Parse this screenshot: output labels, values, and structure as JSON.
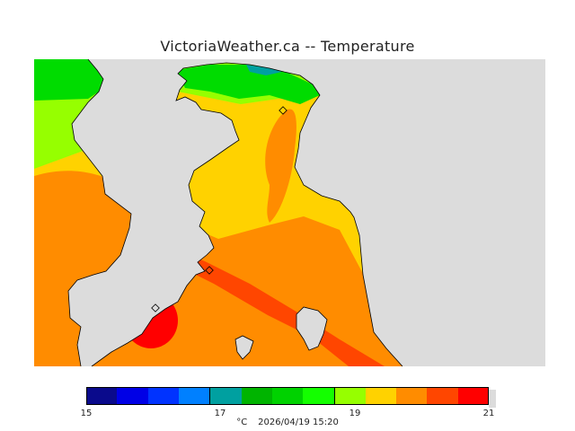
{
  "title": "VictoriaWeather.ca -- Temperature",
  "legend": {
    "colors": [
      "#0a0a8c",
      "#0000e6",
      "#0033ff",
      "#0080ff",
      "#00a0a0",
      "#00b400",
      "#00d200",
      "#14ff00",
      "#96ff00",
      "#ffd200",
      "#ff8c00",
      "#ff4600",
      "#ff0000"
    ],
    "tick_labels": [
      "15",
      "17",
      "19",
      "21"
    ],
    "unit": "°C",
    "timestamp": "2026/04/19 15:20"
  },
  "map": {
    "land_color": "#dcdcdc",
    "zone_colors": {
      "green": "#00dc00",
      "light_green": "#96ff00",
      "yellow": "#ffd200",
      "orange": "#ff8c00",
      "red_orange": "#ff4600",
      "red": "#ff0000"
    }
  }
}
